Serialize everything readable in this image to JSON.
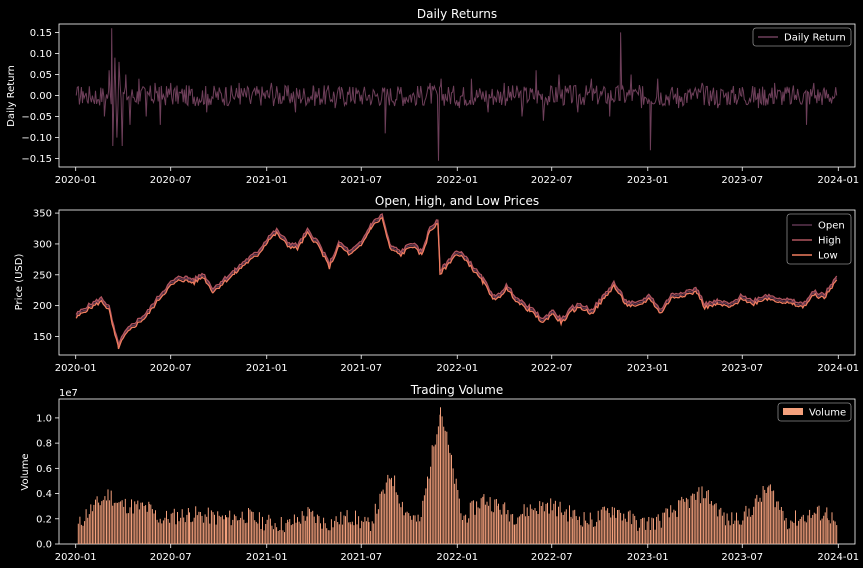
{
  "chart_data": [
    {
      "type": "line",
      "title": "Daily Returns",
      "xlabel": "",
      "ylabel": "Daily Return",
      "xlim": [
        "2019-11-30",
        "2024-02-02"
      ],
      "ylim": [
        -0.17,
        0.17
      ],
      "yticks": [
        -0.15,
        -0.1,
        -0.05,
        0.0,
        0.05,
        0.1,
        0.15
      ],
      "ytick_labels": [
        "−0.15",
        "−0.10",
        "−0.05",
        "0.00",
        "0.05",
        "0.10",
        "0.15"
      ],
      "xtick_labels": [
        "2020-01",
        "2020-07",
        "2021-01",
        "2021-07",
        "2022-01",
        "2022-07",
        "2023-01",
        "2023-07",
        "2024-01"
      ],
      "legend": "top-right",
      "series": [
        {
          "name": "Daily Return",
          "color": "#6e3f5a",
          "points": [
            [
              "2020-01-02",
              0.0
            ],
            [
              "2020-01-15",
              0.01
            ],
            [
              "2020-02-10",
              -0.02
            ],
            [
              "2020-02-25",
              -0.05
            ],
            [
              "2020-03-05",
              0.06
            ],
            [
              "2020-03-10",
              0.16
            ],
            [
              "2020-03-12",
              -0.12
            ],
            [
              "2020-03-16",
              0.09
            ],
            [
              "2020-03-20",
              -0.1
            ],
            [
              "2020-03-24",
              0.08
            ],
            [
              "2020-03-30",
              -0.12
            ],
            [
              "2020-04-06",
              0.05
            ],
            [
              "2020-04-14",
              -0.07
            ],
            [
              "2020-05-01",
              0.04
            ],
            [
              "2020-05-15",
              -0.05
            ],
            [
              "2020-06-01",
              0.03
            ],
            [
              "2020-06-11",
              -0.07
            ],
            [
              "2020-07-01",
              0.03
            ],
            [
              "2020-08-01",
              -0.02
            ],
            [
              "2020-09-08",
              -0.04
            ],
            [
              "2020-10-15",
              0.02
            ],
            [
              "2020-11-09",
              0.03
            ],
            [
              "2020-12-01",
              -0.02
            ],
            [
              "2021-01-10",
              0.03
            ],
            [
              "2021-02-25",
              -0.04
            ],
            [
              "2021-04-01",
              0.02
            ],
            [
              "2021-05-12",
              -0.03
            ],
            [
              "2021-06-15",
              0.02
            ],
            [
              "2021-07-20",
              -0.02
            ],
            [
              "2021-08-16",
              -0.09
            ],
            [
              "2021-09-15",
              0.02
            ],
            [
              "2021-10-15",
              -0.02
            ],
            [
              "2021-11-10",
              0.03
            ],
            [
              "2021-11-26",
              -0.155
            ],
            [
              "2021-12-01",
              0.04
            ],
            [
              "2022-01-05",
              -0.03
            ],
            [
              "2022-01-28",
              0.04
            ],
            [
              "2022-03-01",
              -0.04
            ],
            [
              "2022-04-01",
              0.03
            ],
            [
              "2022-05-05",
              -0.05
            ],
            [
              "2022-06-01",
              0.06
            ],
            [
              "2022-06-15",
              -0.06
            ],
            [
              "2022-07-15",
              0.05
            ],
            [
              "2022-08-20",
              -0.04
            ],
            [
              "2022-09-15",
              0.04
            ],
            [
              "2022-10-20",
              -0.05
            ],
            [
              "2022-11-10",
              0.15
            ],
            [
              "2022-11-30",
              0.05
            ],
            [
              "2022-12-20",
              -0.03
            ],
            [
              "2023-01-06",
              -0.13
            ],
            [
              "2023-01-20",
              0.04
            ],
            [
              "2023-03-01",
              -0.03
            ],
            [
              "2023-04-15",
              0.03
            ],
            [
              "2023-05-15",
              -0.03
            ],
            [
              "2023-07-01",
              0.02
            ],
            [
              "2023-08-01",
              -0.03
            ],
            [
              "2023-09-01",
              0.03
            ],
            [
              "2023-10-01",
              -0.02
            ],
            [
              "2023-11-01",
              -0.07
            ],
            [
              "2023-11-15",
              0.03
            ],
            [
              "2023-12-29",
              0.0
            ]
          ]
        }
      ]
    },
    {
      "type": "line",
      "title": "Open, High, and Low Prices",
      "xlabel": "",
      "ylabel": "Price (USD)",
      "xlim": [
        "2019-11-30",
        "2024-02-02"
      ],
      "ylim": [
        120,
        355
      ],
      "yticks": [
        150,
        200,
        250,
        300,
        350
      ],
      "ytick_labels": [
        "150",
        "200",
        "250",
        "300",
        "350"
      ],
      "xtick_labels": [
        "2020-01",
        "2020-07",
        "2021-01",
        "2021-07",
        "2022-01",
        "2022-07",
        "2023-01",
        "2023-07",
        "2024-01"
      ],
      "legend": "top-right",
      "series": [
        {
          "name": "Open",
          "color": "#5e3550"
        },
        {
          "name": "High",
          "color": "#b0555f"
        },
        {
          "name": "Low",
          "color": "#f07d5f"
        }
      ],
      "price_points": [
        [
          "2020-01-02",
          183
        ],
        [
          "2020-01-20",
          195
        ],
        [
          "2020-02-20",
          210
        ],
        [
          "2020-03-05",
          195
        ],
        [
          "2020-03-16",
          155
        ],
        [
          "2020-03-23",
          135
        ],
        [
          "2020-04-05",
          155
        ],
        [
          "2020-04-20",
          168
        ],
        [
          "2020-05-15",
          185
        ],
        [
          "2020-06-10",
          215
        ],
        [
          "2020-07-01",
          235
        ],
        [
          "2020-07-20",
          245
        ],
        [
          "2020-08-15",
          240
        ],
        [
          "2020-09-01",
          250
        ],
        [
          "2020-09-20",
          225
        ],
        [
          "2020-10-10",
          240
        ],
        [
          "2020-11-01",
          255
        ],
        [
          "2020-11-20",
          270
        ],
        [
          "2020-12-15",
          285
        ],
        [
          "2021-01-05",
          310
        ],
        [
          "2021-01-20",
          320
        ],
        [
          "2021-02-10",
          300
        ],
        [
          "2021-03-01",
          295
        ],
        [
          "2021-03-20",
          320
        ],
        [
          "2021-04-10",
          300
        ],
        [
          "2021-05-01",
          265
        ],
        [
          "2021-05-20",
          300
        ],
        [
          "2021-06-10",
          285
        ],
        [
          "2021-07-01",
          300
        ],
        [
          "2021-07-20",
          330
        ],
        [
          "2021-08-10",
          345
        ],
        [
          "2021-08-25",
          295
        ],
        [
          "2021-09-15",
          285
        ],
        [
          "2021-10-05",
          300
        ],
        [
          "2021-10-25",
          285
        ],
        [
          "2021-11-10",
          325
        ],
        [
          "2021-11-25",
          335
        ],
        [
          "2021-11-29",
          255
        ],
        [
          "2021-12-10",
          265
        ],
        [
          "2021-12-28",
          285
        ],
        [
          "2022-01-15",
          280
        ],
        [
          "2022-02-01",
          260
        ],
        [
          "2022-02-20",
          240
        ],
        [
          "2022-03-15",
          210
        ],
        [
          "2022-04-05",
          230
        ],
        [
          "2022-05-01",
          205
        ],
        [
          "2022-05-20",
          195
        ],
        [
          "2022-06-15",
          175
        ],
        [
          "2022-07-01",
          190
        ],
        [
          "2022-07-20",
          175
        ],
        [
          "2022-08-10",
          195
        ],
        [
          "2022-08-25",
          200
        ],
        [
          "2022-09-15",
          190
        ],
        [
          "2022-10-10",
          215
        ],
        [
          "2022-10-28",
          235
        ],
        [
          "2022-11-20",
          205
        ],
        [
          "2022-12-10",
          200
        ],
        [
          "2023-01-05",
          215
        ],
        [
          "2023-01-25",
          190
        ],
        [
          "2023-02-15",
          215
        ],
        [
          "2023-03-10",
          220
        ],
        [
          "2023-04-05",
          225
        ],
        [
          "2023-04-20",
          200
        ],
        [
          "2023-05-15",
          205
        ],
        [
          "2023-06-10",
          200
        ],
        [
          "2023-07-01",
          215
        ],
        [
          "2023-07-20",
          205
        ],
        [
          "2023-08-15",
          215
        ],
        [
          "2023-09-10",
          210
        ],
        [
          "2023-10-05",
          205
        ],
        [
          "2023-10-25",
          200
        ],
        [
          "2023-11-15",
          220
        ],
        [
          "2023-12-05",
          215
        ],
        [
          "2023-12-29",
          245
        ]
      ]
    },
    {
      "type": "bar",
      "title": "Trading Volume",
      "xlabel": "",
      "ylabel": "Volume",
      "scale_label": "1e7",
      "xlim": [
        "2019-11-30",
        "2024-02-02"
      ],
      "ylim": [
        0,
        11500000
      ],
      "yticks": [
        0,
        2000000,
        4000000,
        6000000,
        8000000,
        10000000
      ],
      "ytick_labels": [
        "0.0",
        "0.2",
        "0.4",
        "0.6",
        "0.8",
        "1.0"
      ],
      "xtick_labels": [
        "2020-01",
        "2020-07",
        "2021-01",
        "2021-07",
        "2022-01",
        "2022-07",
        "2023-01",
        "2023-07",
        "2024-01"
      ],
      "legend": "top-right",
      "series": [
        {
          "name": "Volume",
          "color": "#f4a07c"
        }
      ],
      "volume_points": [
        [
          "2020-01-05",
          1400000
        ],
        [
          "2020-01-20",
          2400000
        ],
        [
          "2020-03-05",
          4000000
        ],
        [
          "2020-03-20",
          3200000
        ],
        [
          "2020-05-20",
          2800000
        ],
        [
          "2020-06-10",
          2000000
        ],
        [
          "2020-08-05",
          2400000
        ],
        [
          "2020-09-10",
          2200000
        ],
        [
          "2020-10-15",
          2000000
        ],
        [
          "2020-11-20",
          2300000
        ],
        [
          "2020-12-20",
          1800000
        ],
        [
          "2021-02-10",
          1500000
        ],
        [
          "2021-03-20",
          2400000
        ],
        [
          "2021-04-25",
          1600000
        ],
        [
          "2021-06-10",
          2200000
        ],
        [
          "2021-07-15",
          1400000
        ],
        [
          "2021-08-27",
          5500000
        ],
        [
          "2021-09-20",
          2800000
        ],
        [
          "2021-10-20",
          1600000
        ],
        [
          "2021-11-29",
          10900000
        ],
        [
          "2022-01-10",
          2000000
        ],
        [
          "2022-02-20",
          3600000
        ],
        [
          "2022-03-20",
          3000000
        ],
        [
          "2022-04-20",
          2200000
        ],
        [
          "2022-05-20",
          2800000
        ],
        [
          "2022-06-25",
          3100000
        ],
        [
          "2022-08-10",
          2300000
        ],
        [
          "2022-09-15",
          1800000
        ],
        [
          "2022-10-25",
          2800000
        ],
        [
          "2022-12-15",
          1600000
        ],
        [
          "2023-01-20",
          1800000
        ],
        [
          "2023-03-15",
          3300000
        ],
        [
          "2023-04-20",
          4100000
        ],
        [
          "2023-06-01",
          1800000
        ],
        [
          "2023-07-10",
          2400000
        ],
        [
          "2023-08-20",
          4500000
        ],
        [
          "2023-09-25",
          1800000
        ],
        [
          "2023-11-15",
          2400000
        ],
        [
          "2023-12-10",
          2500000
        ],
        [
          "2023-12-28",
          1500000
        ]
      ]
    }
  ]
}
